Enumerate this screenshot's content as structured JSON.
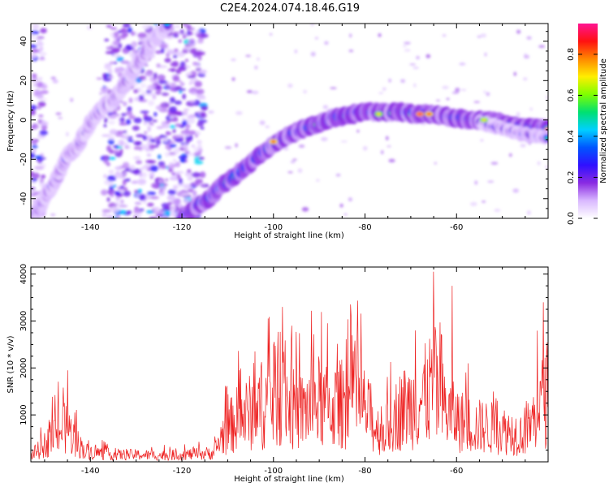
{
  "figure": {
    "title": "C2E4.2024.074.18.46.G19"
  },
  "colorbar": {
    "label": "Normalized spectral amplitude",
    "ticks": [
      0.0,
      0.2,
      0.4,
      0.6,
      0.8
    ],
    "tick_labels": [
      "0.0",
      "0.2",
      "0.4",
      "0.6",
      "0.8"
    ],
    "range": [
      0.0,
      0.95
    ],
    "colormap": [
      "#ffffff",
      "#d9b8ff",
      "#8a2be2",
      "#3010ff",
      "#0055ff",
      "#00d0ff",
      "#00e070",
      "#7fff00",
      "#ffee00",
      "#ff8800",
      "#ff1111",
      "#ff1493"
    ]
  },
  "chart_data": [
    {
      "type": "heatmap",
      "title": "",
      "xlabel": "Height of straight line (km)",
      "ylabel": "Frequency (Hz)",
      "xlim": [
        -153,
        -40
      ],
      "ylim": [
        -50,
        49
      ],
      "x_ticks": [
        -140,
        -120,
        -100,
        -80,
        -60
      ],
      "x_tick_labels": [
        "-140",
        "-120",
        "-100",
        "-80",
        "-60"
      ],
      "y_ticks": [
        -40,
        -20,
        0,
        20,
        40
      ],
      "y_tick_labels": [
        "-40",
        "-20",
        "0",
        "20",
        "40"
      ],
      "ridges": [
        {
          "name": "",
          "points": [
            [
              -153,
              -50
            ],
            [
              -151,
              -44
            ],
            [
              -149,
              -36
            ],
            [
              -147,
              -28
            ],
            [
              -145,
              -18
            ],
            [
              -143,
              -14
            ],
            [
              -141,
              -6
            ],
            [
              -139,
              2
            ],
            [
              -137,
              7
            ],
            [
              -135,
              10
            ],
            [
              -133,
              16
            ],
            [
              -131,
              24
            ],
            [
              -129,
              31
            ],
            [
              -127,
              38
            ],
            [
              -125,
              44
            ],
            [
              -123,
              49
            ]
          ],
          "peak": 0.45,
          "width_hz": 4.5
        },
        {
          "name": "",
          "points": [
            [
              -120,
              -50
            ],
            [
              -117,
              -44
            ],
            [
              -114,
              -40
            ],
            [
              -111,
              -33
            ],
            [
              -108,
              -28
            ],
            [
              -105,
              -22
            ],
            [
              -102,
              -16
            ],
            [
              -99,
              -11
            ],
            [
              -96,
              -7
            ],
            [
              -93,
              -4
            ],
            [
              -90,
              -2
            ],
            [
              -87,
              1
            ],
            [
              -84,
              2
            ],
            [
              -81,
              4
            ],
            [
              -78,
              4
            ],
            [
              -75,
              4
            ],
            [
              -72,
              4
            ],
            [
              -69,
              3
            ],
            [
              -66,
              3
            ],
            [
              -63,
              2
            ],
            [
              -60,
              1
            ],
            [
              -57,
              0
            ],
            [
              -54,
              0
            ],
            [
              -51,
              -1
            ],
            [
              -48,
              -3
            ],
            [
              -45,
              -4
            ],
            [
              -42,
              -4
            ],
            [
              -40,
              -5
            ]
          ],
          "peak": 0.95,
          "width_hz": 4.5
        },
        {
          "name": "",
          "points": [
            [
              -55,
              -1
            ],
            [
              -52,
              -3
            ],
            [
              -49,
              -5
            ],
            [
              -46,
              -7
            ],
            [
              -43,
              -8
            ],
            [
              -40,
              -9
            ]
          ],
          "peak": 0.5,
          "width_hz": 3.5
        }
      ],
      "hotspots": [
        [
          -100,
          -11,
          0.85
        ],
        [
          -68,
          3,
          0.92
        ],
        [
          -66,
          3,
          0.85
        ],
        [
          -77,
          3,
          0.7
        ],
        [
          -54,
          0,
          0.7
        ]
      ],
      "noise_x_ranges": [
        [
          -153,
          -150,
          0.35
        ],
        [
          -137,
          -115,
          0.45
        ]
      ]
    },
    {
      "type": "line",
      "title": "",
      "xlabel": "Height of straight line (km)",
      "ylabel": "SNR (10 * v/v)",
      "xlim": [
        -153,
        -40
      ],
      "ylim": [
        0,
        4150
      ],
      "x_ticks": [
        -140,
        -120,
        -100,
        -80,
        -60
      ],
      "x_tick_labels": [
        "-140",
        "-120",
        "-100",
        "-80",
        "-60"
      ],
      "y_ticks": [
        1000,
        2000,
        3000,
        4000
      ],
      "y_tick_labels": [
        "1000",
        "2000",
        "3000",
        "4000"
      ],
      "line_color": "#ee2222",
      "envelope": [
        [
          -153,
          200
        ],
        [
          -151,
          350
        ],
        [
          -149,
          600
        ],
        [
          -147,
          900
        ],
        [
          -145,
          950
        ],
        [
          -143,
          550
        ],
        [
          -141,
          300
        ],
        [
          -138,
          250
        ],
        [
          -135,
          200
        ],
        [
          -130,
          200
        ],
        [
          -125,
          180
        ],
        [
          -120,
          200
        ],
        [
          -116,
          230
        ],
        [
          -113,
          250
        ],
        [
          -111,
          800
        ],
        [
          -108,
          1200
        ],
        [
          -105,
          1400
        ],
        [
          -102,
          1600
        ],
        [
          -100,
          1800
        ],
        [
          -98,
          2000
        ],
        [
          -96,
          1500
        ],
        [
          -94,
          1400
        ],
        [
          -92,
          1600
        ],
        [
          -90,
          1700
        ],
        [
          -88,
          1500
        ],
        [
          -86,
          1600
        ],
        [
          -84,
          1700
        ],
        [
          -82,
          1800
        ],
        [
          -80,
          1500
        ],
        [
          -78,
          1000
        ],
        [
          -76,
          800
        ],
        [
          -74,
          1200
        ],
        [
          -72,
          1500
        ],
        [
          -70,
          1600
        ],
        [
          -68,
          1700
        ],
        [
          -66,
          2000
        ],
        [
          -65,
          2300
        ],
        [
          -64,
          1800
        ],
        [
          -62,
          1400
        ],
        [
          -60,
          1200
        ],
        [
          -58,
          1100
        ],
        [
          -56,
          1000
        ],
        [
          -54,
          1000
        ],
        [
          -52,
          950
        ],
        [
          -50,
          900
        ],
        [
          -48,
          850
        ],
        [
          -46,
          800
        ],
        [
          -44,
          1000
        ],
        [
          -42,
          1500
        ],
        [
          -40,
          2000
        ]
      ],
      "peaks": [
        [
          -145,
          1950
        ],
        [
          -98,
          3300
        ],
        [
          -96,
          2900
        ],
        [
          -83,
          3100
        ],
        [
          -69,
          2800
        ],
        [
          -65,
          4050
        ],
        [
          -61,
          3750
        ],
        [
          -41,
          3400
        ]
      ],
      "sample_step_km": 0.12
    }
  ]
}
